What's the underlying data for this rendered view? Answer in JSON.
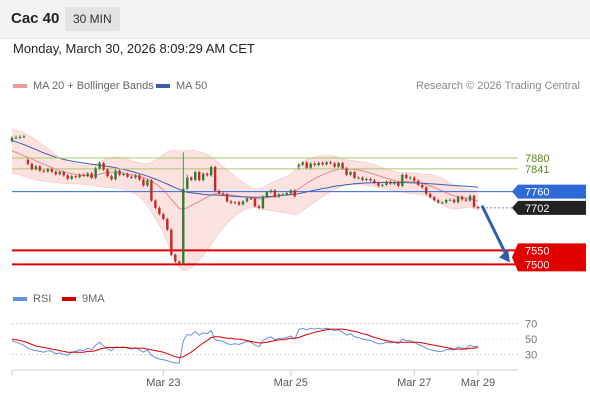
{
  "header": {
    "title": "Cac 40",
    "timeframe": "30 MIN"
  },
  "datetime": "Monday, March 30, 2026 8:09:29 AM CET",
  "legend": {
    "ma": "MA 20 + Bollinger Bands",
    "ma50": "MA 50",
    "rsi": "RSI",
    "rsi_ma": "9MA"
  },
  "credit": "Research © 2026 Trading Central",
  "colors": {
    "bull": "#2e7d32",
    "bear": "#c62828",
    "band_fill": "#fbdcdc",
    "ma20": "#e88a8a",
    "ma50": "#3d5fa8",
    "resistance": "#a7c96b",
    "support": "#e00000",
    "pivot": "#2f6bd6",
    "last": "#222222",
    "arrow": "#2f5fa8",
    "rsi": "#6a8fe0",
    "rsi_ma": "#d40000"
  },
  "chart_data": [
    {
      "type": "candlestick",
      "ylim": [
        7430,
        7980
      ],
      "x_ticks": [
        {
          "label": "Mar 23",
          "i": 38
        },
        {
          "label": "Mar 25",
          "i": 70
        },
        {
          "label": "Mar 27",
          "i": 101
        },
        {
          "label": "Mar 29",
          "i": 117
        }
      ],
      "levels": [
        {
          "label": "7880",
          "value": 7880,
          "kind": "resistance"
        },
        {
          "label": "7841",
          "value": 7841,
          "kind": "resistance"
        },
        {
          "label": "7760",
          "value": 7760,
          "kind": "pivot"
        },
        {
          "label": "7702",
          "value": 7702,
          "kind": "last"
        },
        {
          "label": "7550",
          "value": 7550,
          "kind": "support"
        },
        {
          "label": "7500",
          "value": 7500,
          "kind": "support"
        }
      ],
      "forecast_arrow": {
        "from": 7710,
        "to": 7500
      },
      "candles": {
        "close": [
          7952,
          7953,
          7956,
          7957,
          7859,
          7840,
          7850,
          7835,
          7832,
          7840,
          7831,
          7822,
          7830,
          7818,
          7806,
          7815,
          7812,
          7820,
          7816,
          7825,
          7809,
          7843,
          7862,
          7839,
          7815,
          7804,
          7835,
          7820,
          7823,
          7813,
          7810,
          7818,
          7803,
          7782,
          7800,
          7728,
          7702,
          7680,
          7662,
          7624,
          7534,
          7510,
          7504,
          7770,
          7810,
          7802,
          7830,
          7801,
          7824,
          7818,
          7848,
          7763,
          7754,
          7750,
          7725,
          7720,
          7722,
          7714,
          7725,
          7736,
          7735,
          7708,
          7701,
          7742,
          7758,
          7764,
          7742,
          7750,
          7750,
          7755,
          7764,
          7743,
          7856,
          7864,
          7845,
          7860,
          7855,
          7863,
          7857,
          7865,
          7861,
          7849,
          7862,
          7843,
          7820,
          7830,
          7809,
          7810,
          7802,
          7805,
          7800,
          7791,
          7781,
          7784,
          7795,
          7788,
          7793,
          7780,
          7820,
          7808,
          7810,
          7799,
          7784,
          7775,
          7752,
          7740,
          7729,
          7721,
          7721,
          7730,
          7731,
          7722,
          7741,
          7732,
          7728,
          7745,
          7705,
          7702
        ],
        "open": [
          7940,
          7952,
          7953,
          7956,
          7874,
          7859,
          7840,
          7850,
          7835,
          7832,
          7840,
          7831,
          7822,
          7830,
          7818,
          7806,
          7815,
          7812,
          7820,
          7816,
          7825,
          7809,
          7843,
          7862,
          7839,
          7815,
          7804,
          7835,
          7820,
          7823,
          7813,
          7810,
          7818,
          7803,
          7782,
          7800,
          7728,
          7702,
          7680,
          7662,
          7624,
          7534,
          7510,
          7504,
          7770,
          7810,
          7802,
          7830,
          7801,
          7824,
          7818,
          7848,
          7763,
          7754,
          7750,
          7725,
          7720,
          7722,
          7714,
          7725,
          7736,
          7735,
          7708,
          7701,
          7742,
          7758,
          7764,
          7742,
          7750,
          7750,
          7755,
          7764,
          7850,
          7856,
          7864,
          7845,
          7860,
          7855,
          7863,
          7857,
          7865,
          7861,
          7849,
          7862,
          7843,
          7820,
          7830,
          7809,
          7810,
          7802,
          7805,
          7800,
          7791,
          7781,
          7784,
          7795,
          7788,
          7793,
          7780,
          7820,
          7808,
          7810,
          7799,
          7784,
          7775,
          7752,
          7740,
          7729,
          7721,
          7721,
          7730,
          7731,
          7722,
          7741,
          7732,
          7728,
          7745,
          7705
        ],
        "high": [
          7958,
          7960,
          7962,
          7963,
          7879,
          7864,
          7856,
          7855,
          7840,
          7845,
          7845,
          7836,
          7835,
          7835,
          7823,
          7820,
          7820,
          7825,
          7825,
          7830,
          7830,
          7848,
          7868,
          7866,
          7844,
          7820,
          7840,
          7840,
          7828,
          7828,
          7818,
          7823,
          7823,
          7808,
          7805,
          7805,
          7733,
          7707,
          7685,
          7667,
          7629,
          7539,
          7515,
          7900,
          7820,
          7815,
          7835,
          7835,
          7829,
          7829,
          7853,
          7853,
          7768,
          7759,
          7755,
          7730,
          7727,
          7727,
          7730,
          7741,
          7741,
          7740,
          7713,
          7747,
          7763,
          7769,
          7769,
          7755,
          7755,
          7760,
          7769,
          7769,
          7862,
          7869,
          7869,
          7865,
          7865,
          7868,
          7868,
          7870,
          7870,
          7866,
          7867,
          7867,
          7848,
          7835,
          7835,
          7815,
          7815,
          7810,
          7810,
          7805,
          7796,
          7789,
          7800,
          7800,
          7798,
          7798,
          7825,
          7825,
          7815,
          7815,
          7804,
          7789,
          7780,
          7757,
          7745,
          7734,
          7726,
          7735,
          7736,
          7736,
          7746,
          7746,
          7737,
          7750,
          7750,
          7710
        ],
        "low": [
          7935,
          7947,
          7948,
          7951,
          7854,
          7835,
          7835,
          7830,
          7827,
          7827,
          7826,
          7817,
          7817,
          7813,
          7801,
          7801,
          7807,
          7807,
          7811,
          7811,
          7804,
          7804,
          7838,
          7834,
          7810,
          7799,
          7799,
          7815,
          7815,
          7808,
          7805,
          7805,
          7798,
          7777,
          7777,
          7723,
          7697,
          7675,
          7657,
          7619,
          7529,
          7505,
          7499,
          7499,
          7765,
          7797,
          7797,
          7796,
          7796,
          7813,
          7813,
          7758,
          7749,
          7745,
          7720,
          7715,
          7715,
          7709,
          7709,
          7720,
          7730,
          7703,
          7696,
          7696,
          7737,
          7753,
          7737,
          7737,
          7745,
          7745,
          7750,
          7738,
          7838,
          7851,
          7840,
          7840,
          7850,
          7850,
          7852,
          7852,
          7856,
          7844,
          7844,
          7838,
          7815,
          7815,
          7804,
          7804,
          7797,
          7797,
          7795,
          7786,
          7776,
          7776,
          7779,
          7783,
          7783,
          7775,
          7775,
          7803,
          7803,
          7794,
          7779,
          7770,
          7747,
          7735,
          7724,
          7716,
          7716,
          7716,
          7725,
          7717,
          7717,
          7727,
          7723,
          7723,
          7700,
          7697
        ]
      },
      "ma20": [
        7905,
        7900,
        7894,
        7888,
        7882,
        7876,
        7870,
        7864,
        7858,
        7852,
        7846,
        7840,
        7834,
        7830,
        7827,
        7824,
        7822,
        7820,
        7818,
        7816,
        7815,
        7818,
        7822,
        7826,
        7828,
        7829,
        7830,
        7828,
        7826,
        7823,
        7820,
        7818,
        7814,
        7810,
        7805,
        7798,
        7789,
        7778,
        7765,
        7750,
        7733,
        7716,
        7700,
        7697,
        7702,
        7710,
        7717,
        7725,
        7733,
        7740,
        7748,
        7752,
        7752,
        7751,
        7750,
        7748,
        7746,
        7744,
        7742,
        7740,
        7738,
        7736,
        7734,
        7735,
        7738,
        7740,
        7743,
        7745,
        7747,
        7749,
        7751,
        7758,
        7770,
        7780,
        7790,
        7798,
        7806,
        7814,
        7820,
        7826,
        7832,
        7836,
        7840,
        7840,
        7840,
        7840,
        7839,
        7837,
        7834,
        7830,
        7826,
        7822,
        7817,
        7812,
        7808,
        7804,
        7800,
        7796,
        7796,
        7796,
        7795,
        7794,
        7792,
        7789,
        7785,
        7780,
        7775,
        7769,
        7762,
        7756,
        7750,
        7745,
        7742,
        7740,
        7737,
        7735,
        7730,
        7726
      ],
      "bb_upper": [
        7985,
        7980,
        7975,
        7970,
        7962,
        7953,
        7944,
        7934,
        7924,
        7914,
        7903,
        7892,
        7882,
        7874,
        7868,
        7862,
        7858,
        7856,
        7854,
        7853,
        7853,
        7858,
        7866,
        7874,
        7879,
        7882,
        7884,
        7883,
        7880,
        7876,
        7870,
        7866,
        7862,
        7860,
        7860,
        7864,
        7872,
        7882,
        7893,
        7902,
        7906,
        7908,
        7905,
        7905,
        7906,
        7908,
        7906,
        7902,
        7898,
        7892,
        7884,
        7874,
        7862,
        7850,
        7838,
        7826,
        7814,
        7803,
        7793,
        7784,
        7776,
        7770,
        7770,
        7775,
        7782,
        7790,
        7796,
        7802,
        7808,
        7814,
        7822,
        7835,
        7855,
        7866,
        7874,
        7880,
        7884,
        7887,
        7888,
        7889,
        7888,
        7886,
        7882,
        7876,
        7874,
        7872,
        7870,
        7868,
        7866,
        7864,
        7860,
        7856,
        7851,
        7845,
        7840,
        7836,
        7832,
        7828,
        7828,
        7828,
        7827,
        7826,
        7825,
        7823,
        7822,
        7820,
        7818,
        7814,
        7808,
        7800,
        7792,
        7784,
        7777,
        7773,
        7770,
        7768,
        7765,
        7762
      ],
      "bb_lower": [
        7825,
        7822,
        7818,
        7814,
        7810,
        7806,
        7802,
        7800,
        7798,
        7796,
        7794,
        7792,
        7790,
        7789,
        7788,
        7788,
        7788,
        7787,
        7786,
        7785,
        7782,
        7780,
        7778,
        7776,
        7775,
        7774,
        7773,
        7771,
        7768,
        7764,
        7758,
        7752,
        7742,
        7728,
        7710,
        7688,
        7665,
        7640,
        7612,
        7580,
        7545,
        7515,
        7490,
        7478,
        7480,
        7488,
        7500,
        7515,
        7532,
        7550,
        7570,
        7592,
        7612,
        7630,
        7648,
        7662,
        7674,
        7684,
        7692,
        7698,
        7702,
        7704,
        7702,
        7697,
        7694,
        7692,
        7690,
        7688,
        7686,
        7684,
        7680,
        7677,
        7683,
        7692,
        7702,
        7712,
        7722,
        7732,
        7742,
        7750,
        7758,
        7766,
        7774,
        7780,
        7783,
        7785,
        7786,
        7786,
        7784,
        7782,
        7780,
        7778,
        7775,
        7772,
        7769,
        7766,
        7763,
        7760,
        7758,
        7756,
        7754,
        7752,
        7750,
        7748,
        7745,
        7740,
        7733,
        7724,
        7714,
        7706,
        7700,
        7697,
        7699,
        7701,
        7703,
        7705,
        7700,
        7694
      ],
      "ma50": [
        7942,
        7938,
        7933,
        7928,
        7922,
        7916,
        7910,
        7904,
        7898,
        7893,
        7888,
        7883,
        7879,
        7875,
        7872,
        7869,
        7866,
        7864,
        7862,
        7860,
        7858,
        7856,
        7854,
        7852,
        7850,
        7848,
        7845,
        7842,
        7839,
        7836,
        7832,
        7828,
        7824,
        7820,
        7815,
        7810,
        7805,
        7799,
        7793,
        7787,
        7780,
        7774,
        7768,
        7762,
        7758,
        7756,
        7754,
        7752,
        7750,
        7749,
        7748,
        7748,
        7747,
        7746,
        7745,
        7744,
        7743,
        7742,
        7741,
        7741,
        7740,
        7740,
        7740,
        7741,
        7742,
        7743,
        7744,
        7745,
        7747,
        7748,
        7749,
        7751,
        7753,
        7756,
        7759,
        7762,
        7765,
        7768,
        7771,
        7773,
        7776,
        7779,
        7781,
        7783,
        7785,
        7786,
        7788,
        7789,
        7790,
        7791,
        7791,
        7792,
        7792,
        7793,
        7793,
        7793,
        7792,
        7792,
        7792,
        7792,
        7791,
        7791,
        7791,
        7790,
        7789,
        7788,
        7787,
        7786,
        7785,
        7784,
        7783,
        7782,
        7781,
        7780,
        7779,
        7778,
        7777,
        7775
      ]
    },
    {
      "type": "line",
      "ylim": [
        15,
        80
      ],
      "y_ticks": [
        70,
        50,
        30
      ],
      "rsi": [
        48,
        46,
        44,
        42,
        38,
        36,
        35,
        34,
        33,
        35,
        34,
        31,
        32,
        30,
        29,
        33,
        34,
        36,
        35,
        38,
        36,
        42,
        46,
        41,
        37,
        35,
        40,
        39,
        40,
        38,
        37,
        39,
        36,
        33,
        36,
        29,
        26,
        24,
        23,
        22,
        20,
        19,
        19,
        48,
        56,
        55,
        60,
        55,
        58,
        57,
        61,
        49,
        48,
        47,
        44,
        43,
        44,
        43,
        45,
        47,
        46,
        42,
        40,
        48,
        51,
        53,
        49,
        51,
        51,
        52,
        54,
        50,
        62,
        64,
        62,
        64,
        63,
        64,
        63,
        64,
        63,
        61,
        62,
        59,
        55,
        57,
        53,
        52,
        50,
        49,
        48,
        46,
        44,
        44,
        46,
        45,
        46,
        44,
        50,
        48,
        48,
        46,
        43,
        41,
        38,
        36,
        35,
        34,
        34,
        36,
        37,
        36,
        40,
        38,
        38,
        42,
        40,
        41
      ],
      "rsi_ma": [
        50,
        49,
        48,
        47,
        45,
        43,
        41,
        40,
        39,
        38,
        37,
        36,
        35,
        34,
        33,
        33,
        33,
        33,
        33,
        34,
        34,
        35,
        37,
        38,
        39,
        39,
        39,
        39,
        39,
        39,
        38,
        38,
        38,
        38,
        37,
        36,
        35,
        34,
        33,
        31,
        29,
        27,
        26,
        27,
        30,
        33,
        37,
        41,
        45,
        48,
        52,
        53,
        53,
        52,
        51,
        51,
        50,
        50,
        49,
        48,
        47,
        46,
        45,
        45,
        46,
        47,
        48,
        49,
        49,
        50,
        51,
        51,
        52,
        54,
        56,
        57,
        59,
        60,
        61,
        62,
        63,
        63,
        63,
        63,
        62,
        61,
        60,
        59,
        57,
        56,
        54,
        52,
        51,
        49,
        48,
        47,
        46,
        46,
        46,
        46,
        46,
        46,
        46,
        45,
        44,
        43,
        42,
        41,
        40,
        39,
        38,
        37,
        37,
        37,
        37,
        38,
        38,
        39
      ]
    }
  ]
}
